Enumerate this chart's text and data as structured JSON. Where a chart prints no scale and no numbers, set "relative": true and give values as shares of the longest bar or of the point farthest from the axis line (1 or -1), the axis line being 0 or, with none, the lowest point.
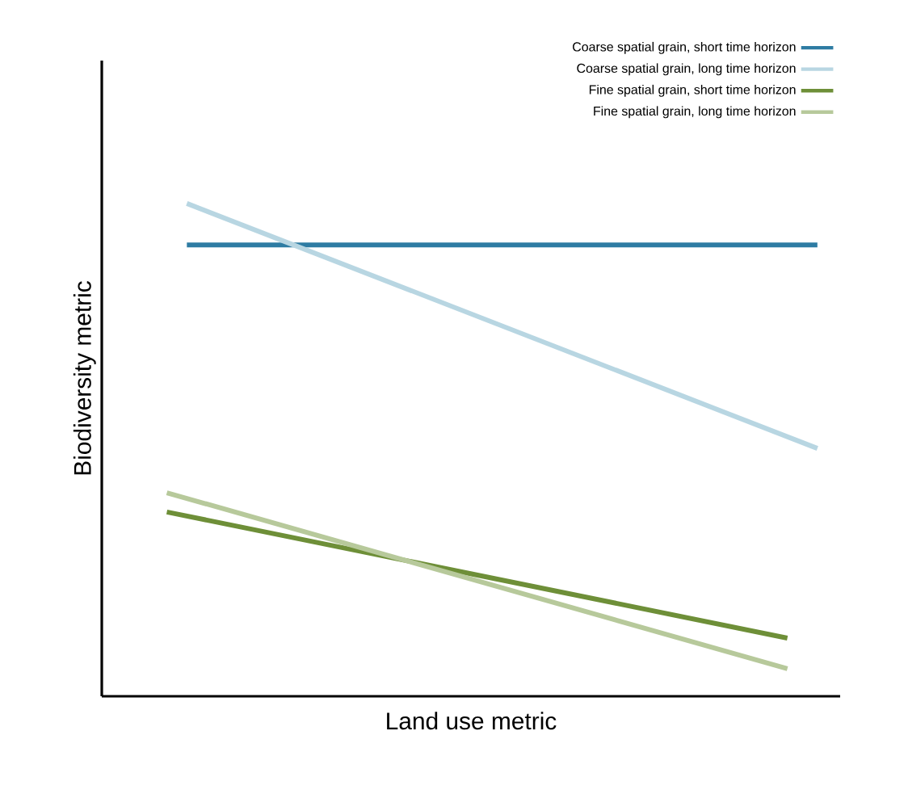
{
  "chart_data": {
    "type": "line",
    "relative": true,
    "xlabel": "Land use metric",
    "ylabel": "Biodiversity metric",
    "legend": "top right",
    "marker": "none",
    "line_style": "solid",
    "categories": [
      null,
      null,
      null,
      null,
      null,
      null,
      null,
      null,
      null,
      null,
      null,
      null,
      null,
      null,
      null,
      null,
      null,
      null,
      null,
      null,
      null,
      null,
      null,
      null,
      null,
      null,
      null,
      null,
      null,
      null,
      null,
      null,
      null,
      null,
      null,
      null,
      null,
      null,
      null,
      null,
      null,
      null,
      null,
      null,
      null,
      null,
      null,
      null,
      null,
      null,
      null,
      null,
      null,
      null,
      null,
      null,
      null,
      null,
      null,
      null,
      null,
      null,
      null,
      null,
      null,
      null
    ],
    "series": [
      {
        "name": "Coarse spatial grain, short time horizon",
        "color": "#2e7ca3",
        "values": [
          null,
          null,
          0.916,
          null,
          null,
          null,
          null,
          null,
          null,
          null,
          null,
          null,
          null,
          null,
          null,
          null,
          null,
          null,
          null,
          null,
          null,
          null,
          null,
          null,
          null,
          null,
          null,
          null,
          null,
          null,
          null,
          null,
          null,
          null,
          null,
          null,
          null,
          null,
          null,
          null,
          null,
          null,
          null,
          null,
          null,
          null,
          null,
          null,
          null,
          null,
          null,
          null,
          null,
          null,
          null,
          null,
          null,
          null,
          null,
          null,
          null,
          null,
          null,
          null,
          null,
          0.916
        ]
      },
      {
        "name": "Coarse spatial grain, long time horizon",
        "color": "#b8d6e2",
        "values": [
          null,
          null,
          1.0,
          null,
          null,
          null,
          null,
          null,
          null,
          null,
          null,
          null,
          null,
          null,
          null,
          null,
          null,
          null,
          null,
          null,
          null,
          null,
          null,
          null,
          null,
          null,
          null,
          null,
          null,
          null,
          null,
          null,
          null,
          null,
          null,
          null,
          null,
          null,
          null,
          null,
          null,
          null,
          null,
          null,
          null,
          null,
          null,
          null,
          null,
          null,
          null,
          null,
          null,
          null,
          null,
          null,
          null,
          null,
          null,
          null,
          null,
          null,
          null,
          null,
          null,
          0.503
        ]
      },
      {
        "name": "Fine spatial grain, short time horizon",
        "color": "#6e8f38",
        "values": [
          0.374,
          null,
          null,
          null,
          null,
          null,
          null,
          null,
          null,
          null,
          null,
          null,
          null,
          null,
          null,
          null,
          null,
          null,
          null,
          null,
          null,
          null,
          null,
          null,
          null,
          null,
          null,
          null,
          null,
          null,
          null,
          null,
          null,
          null,
          null,
          null,
          null,
          null,
          null,
          null,
          null,
          null,
          null,
          null,
          null,
          null,
          null,
          null,
          null,
          null,
          null,
          null,
          null,
          null,
          null,
          null,
          null,
          null,
          null,
          null,
          null,
          null,
          0.118,
          null,
          null,
          null
        ]
      },
      {
        "name": "Fine spatial grain, long time horizon",
        "color": "#b7c99b",
        "values": [
          0.413,
          null,
          null,
          null,
          null,
          null,
          null,
          null,
          null,
          null,
          null,
          null,
          null,
          null,
          null,
          null,
          null,
          null,
          null,
          null,
          null,
          null,
          null,
          null,
          null,
          null,
          null,
          null,
          null,
          null,
          null,
          null,
          null,
          null,
          null,
          null,
          null,
          null,
          null,
          null,
          null,
          null,
          null,
          null,
          null,
          null,
          null,
          null,
          null,
          null,
          null,
          null,
          null,
          null,
          null,
          null,
          null,
          null,
          null,
          null,
          null,
          null,
          0.056,
          null,
          null,
          null
        ]
      }
    ]
  }
}
